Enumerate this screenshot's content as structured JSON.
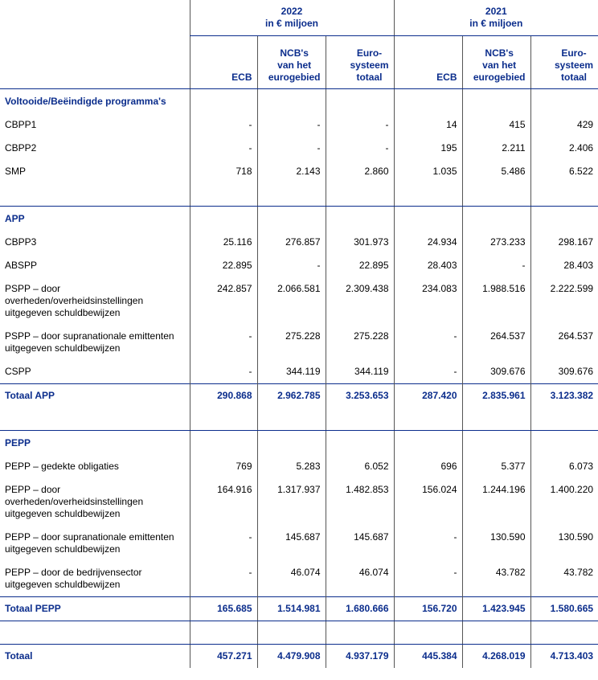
{
  "header": {
    "groups": [
      {
        "year": "2022",
        "unit": "in € miljoen"
      },
      {
        "year": "2021",
        "unit": "in € miljoen"
      }
    ],
    "columns": [
      "ECB",
      "NCB's\nvan het\neurogebied",
      "Euro-\nsysteem\ntotaal",
      "ECB",
      "NCB's\nvan het\neurogebied",
      "Euro-\nsysteem\ntotaal"
    ]
  },
  "sections": [
    {
      "title": "Voltooide/Beëindigde programma's",
      "rows": [
        {
          "label": "CBPP1",
          "values": [
            "-",
            "-",
            "-",
            "14",
            "415",
            "429"
          ]
        },
        {
          "label": "CBPP2",
          "values": [
            "-",
            "-",
            "-",
            "195",
            "2.211",
            "2.406"
          ]
        },
        {
          "label": "SMP",
          "values": [
            "718",
            "2.143",
            "2.860",
            "1.035",
            "5.486",
            "6.522"
          ]
        }
      ]
    },
    {
      "title": "APP",
      "rows": [
        {
          "label": "CBPP3",
          "values": [
            "25.116",
            "276.857",
            "301.973",
            "24.934",
            "273.233",
            "298.167"
          ]
        },
        {
          "label": "ABSPP",
          "values": [
            "22.895",
            "-",
            "22.895",
            "28.403",
            "-",
            "28.403"
          ]
        },
        {
          "label": "PSPP – door overheden/overheidsinstellingen uitgegeven schuldbewijzen",
          "values": [
            "242.857",
            "2.066.581",
            "2.309.438",
            "234.083",
            "1.988.516",
            "2.222.599"
          ]
        },
        {
          "label": "PSPP – door supranationale emittenten uitgegeven schuldbewijzen",
          "values": [
            "-",
            "275.228",
            "275.228",
            "-",
            "264.537",
            "264.537"
          ]
        },
        {
          "label": "CSPP",
          "values": [
            "-",
            "344.119",
            "344.119",
            "-",
            "309.676",
            "309.676"
          ]
        }
      ],
      "total": {
        "label": "Totaal APP",
        "values": [
          "290.868",
          "2.962.785",
          "3.253.653",
          "287.420",
          "2.835.961",
          "3.123.382"
        ]
      }
    },
    {
      "title": "PEPP",
      "rows": [
        {
          "label": "PEPP – gedekte obligaties",
          "values": [
            "769",
            "5.283",
            "6.052",
            "696",
            "5.377",
            "6.073"
          ]
        },
        {
          "label": "PEPP – door overheden/overheidsinstellingen uitgegeven schuldbewijzen",
          "values": [
            "164.916",
            "1.317.937",
            "1.482.853",
            "156.024",
            "1.244.196",
            "1.400.220"
          ]
        },
        {
          "label": "PEPP – door supranationale emittenten uitgegeven schuldbewijzen",
          "values": [
            "-",
            "145.687",
            "145.687",
            "-",
            "130.590",
            "130.590"
          ]
        },
        {
          "label": "PEPP – door de bedrijvensector uitgegeven schuldbewijzen",
          "values": [
            "-",
            "46.074",
            "46.074",
            "-",
            "43.782",
            "43.782"
          ]
        }
      ],
      "total": {
        "label": "Totaal PEPP",
        "values": [
          "165.685",
          "1.514.981",
          "1.680.666",
          "156.720",
          "1.423.945",
          "1.580.665"
        ]
      }
    }
  ],
  "grand_total": {
    "label": "Totaal",
    "values": [
      "457.271",
      "4.479.908",
      "4.937.179",
      "445.384",
      "4.268.019",
      "4.713.403"
    ]
  }
}
